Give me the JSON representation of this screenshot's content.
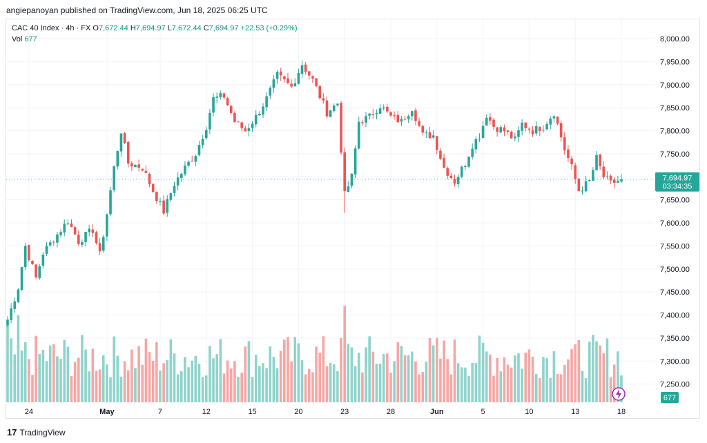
{
  "publisher": {
    "text": "angiepanoyan published on TradingView.com, Jun 18, 2025 06:25 UTC"
  },
  "legend": {
    "symbol": "CAC 40 Index · 4h · FX",
    "o_label": "O",
    "o_value": "7,672.44",
    "h_label": "H",
    "h_value": "7,694.97",
    "l_label": "L",
    "l_value": "7,672.44",
    "c_label": "C",
    "c_value": "7,694.97",
    "change": "+22.53 (+0.29%)",
    "vol_label": "Vol",
    "vol_value": "677"
  },
  "price_badge": {
    "value": "7,694.97",
    "countdown": "03:34:35"
  },
  "volume_badge": {
    "value": "677"
  },
  "footer": {
    "logo_text": "TradingView"
  },
  "colors": {
    "up": "#26a69a",
    "down": "#ef5350",
    "up_vol": "#8fd3cb",
    "down_vol": "#f6a6a4",
    "grid": "#f0f3fa",
    "last_price": "#26a69a"
  },
  "chart_data": {
    "type": "candlestick",
    "y_ticks": [
      "8,000.00",
      "7,950.00",
      "7,900.00",
      "7,850.00",
      "7,800.00",
      "7,750.00",
      "7,700.00",
      "7,650.00",
      "7,600.00",
      "7,550.00",
      "7,500.00",
      "7,450.00",
      "7,400.00",
      "7,350.00",
      "7,300.00",
      "7,250.00"
    ],
    "ylim": [
      7220,
      8008
    ],
    "x_ticks": [
      {
        "label": "24",
        "bar": 6
      },
      {
        "label": "May",
        "bar": 28
      },
      {
        "label": "7",
        "bar": 43
      },
      {
        "label": "12",
        "bar": 56
      },
      {
        "label": "15",
        "bar": 69
      },
      {
        "label": "20",
        "bar": 82
      },
      {
        "label": "23",
        "bar": 95
      },
      {
        "label": "28",
        "bar": 108
      },
      {
        "label": "Jun",
        "bar": 121
      },
      {
        "label": "5",
        "bar": 134
      },
      {
        "label": "10",
        "bar": 147
      },
      {
        "label": "13",
        "bar": 160
      },
      {
        "label": "18",
        "bar": 173
      }
    ],
    "last_price": 7694.97,
    "bars_total": 174,
    "key_points": [
      [
        0,
        7390
      ],
      [
        3,
        7460
      ],
      [
        5,
        7550
      ],
      [
        8,
        7480
      ],
      [
        10,
        7535
      ],
      [
        13,
        7565
      ],
      [
        17,
        7605
      ],
      [
        20,
        7560
      ],
      [
        24,
        7585
      ],
      [
        26,
        7530
      ],
      [
        28,
        7620
      ],
      [
        30,
        7720
      ],
      [
        32,
        7800
      ],
      [
        34,
        7730
      ],
      [
        38,
        7720
      ],
      [
        41,
        7670
      ],
      [
        44,
        7625
      ],
      [
        47,
        7685
      ],
      [
        50,
        7720
      ],
      [
        53,
        7750
      ],
      [
        56,
        7810
      ],
      [
        58,
        7870
      ],
      [
        61,
        7875
      ],
      [
        64,
        7820
      ],
      [
        67,
        7800
      ],
      [
        70,
        7830
      ],
      [
        73,
        7870
      ],
      [
        76,
        7920
      ],
      [
        80,
        7895
      ],
      [
        83,
        7945
      ],
      [
        86,
        7910
      ],
      [
        90,
        7840
      ],
      [
        93,
        7860
      ],
      [
        95,
        7660
      ],
      [
        97,
        7700
      ],
      [
        99,
        7820
      ],
      [
        102,
        7830
      ],
      [
        105,
        7855
      ],
      [
        108,
        7830
      ],
      [
        111,
        7820
      ],
      [
        114,
        7850
      ],
      [
        117,
        7790
      ],
      [
        120,
        7790
      ],
      [
        123,
        7720
      ],
      [
        126,
        7690
      ],
      [
        129,
        7730
      ],
      [
        131,
        7770
      ],
      [
        133,
        7790
      ],
      [
        135,
        7835
      ],
      [
        137,
        7810
      ],
      [
        140,
        7800
      ],
      [
        143,
        7780
      ],
      [
        145,
        7815
      ],
      [
        148,
        7800
      ],
      [
        151,
        7810
      ],
      [
        154,
        7840
      ],
      [
        157,
        7760
      ],
      [
        159,
        7720
      ],
      [
        161,
        7670
      ],
      [
        164,
        7690
      ],
      [
        166,
        7740
      ],
      [
        168,
        7700
      ],
      [
        170,
        7685
      ],
      [
        173,
        7695
      ]
    ],
    "volume_range": [
      1,
      100
    ]
  }
}
